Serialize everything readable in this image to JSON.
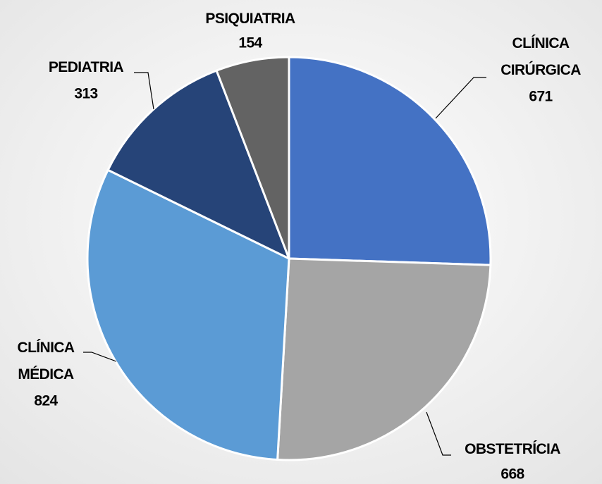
{
  "chart_data": {
    "type": "pie",
    "categories": [
      "CLÍNICA CIRÚRGICA",
      "OBSTETRÍCIA",
      "CLÍNICA MÉDICA",
      "PEDIATRIA",
      "PSIQUIATRIA"
    ],
    "values": [
      671,
      668,
      824,
      313,
      154
    ],
    "colors": [
      "#4472c4",
      "#a5a5a5",
      "#5b9bd5",
      "#264478",
      "#636363"
    ]
  }
}
